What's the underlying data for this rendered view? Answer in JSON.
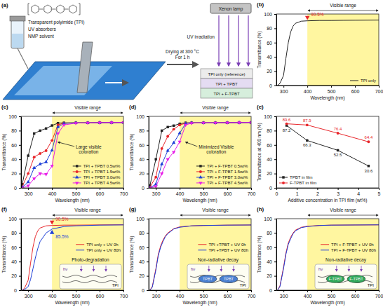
{
  "schematic": {
    "panel": "(a)",
    "polymer": "Transparent polyimide (TPI)",
    "absorber": "UV absorbers",
    "solvent": "NMP solvent",
    "drying": [
      "Drying at 300 °C",
      "For 1 h"
    ],
    "lamp": "Xenon lamp",
    "irradiation": "UV irradiation",
    "films": [
      "TPI only (reference)",
      "TPI + TPBT",
      "TPI + F-TPBT"
    ]
  },
  "chart_data": [
    {
      "type": "line",
      "panel": "(b)",
      "x_label": "Wavelength (nm)",
      "y_label": "Transmittance (%)",
      "xlim": [
        270,
        700
      ],
      "xticks": [
        300,
        400,
        500,
        600,
        700
      ],
      "ylim": [
        0,
        100
      ],
      "yticks": [
        0,
        20,
        40,
        60,
        80,
        100
      ],
      "visible_range": [
        400,
        700
      ],
      "visible_label": "Visible range",
      "x": [
        275,
        285,
        300,
        310,
        320,
        330,
        340,
        350,
        375,
        400,
        450,
        500,
        550,
        600,
        650,
        700
      ],
      "series": [
        {
          "name": "TPI only",
          "color": "#222222",
          "values": [
            0,
            3,
            14,
            38,
            60,
            75,
            83,
            87,
            90,
            90.5,
            91,
            91,
            91.2,
            91.3,
            91.4,
            91.5
          ]
        }
      ],
      "legend": "lower right",
      "annotations": [
        {
          "label": "90.5%",
          "x": 400,
          "y": 90.5,
          "color": "#e8262b",
          "marker": "triangle-down"
        }
      ]
    },
    {
      "type": "line",
      "panel": "(c)",
      "x_label": "Wavelength (nm)",
      "y_label": "Transmittance (%)",
      "xlim": [
        270,
        700
      ],
      "xticks": [
        300,
        400,
        500,
        600,
        700
      ],
      "ylim": [
        0,
        100
      ],
      "yticks": [
        0,
        20,
        40,
        60,
        80,
        100
      ],
      "visible_range": [
        400,
        700
      ],
      "visible_label": "Visible range",
      "x": [
        275,
        300,
        325,
        350,
        375,
        400,
        425,
        450,
        500,
        550,
        600,
        650,
        700
      ],
      "series": [
        {
          "name": "TPI + TPBT 0.5wt%",
          "color": "#222222",
          "marker": "square",
          "values": [
            5,
            45,
            76,
            80,
            83,
            87.2,
            90.5,
            91,
            91,
            91,
            91.2,
            91.3,
            91.4
          ]
        },
        {
          "name": "TPI + TPBT 1.5wt%",
          "color": "#e8262b",
          "marker": "circle",
          "values": [
            2,
            20,
            43,
            48,
            52,
            66.3,
            88,
            90.5,
            91,
            91,
            91.2,
            91.3,
            91.4
          ]
        },
        {
          "name": "TPI + TPBT 3.0wt%",
          "color": "#1d3fd8",
          "marker": "triangle",
          "values": [
            1,
            8,
            28,
            33,
            36,
            52.5,
            85,
            90,
            91,
            91,
            91.2,
            91.3,
            91.4
          ]
        },
        {
          "name": "TPI + TPBT 4.5wt%",
          "color": "#e81ee8",
          "marker": "triangle-down",
          "values": [
            0,
            3,
            13,
            20,
            19,
            30.6,
            76,
            88,
            90.5,
            91,
            91.2,
            91.3,
            91.4
          ]
        }
      ],
      "legend": "lower right",
      "annotations": [
        {
          "text": "Large visible coloration"
        }
      ]
    },
    {
      "type": "line",
      "panel": "(d)",
      "x_label": "Wavelength (nm)",
      "y_label": "Transmittance (%)",
      "xlim": [
        270,
        700
      ],
      "xticks": [
        300,
        400,
        500,
        600,
        700
      ],
      "ylim": [
        0,
        100
      ],
      "yticks": [
        0,
        20,
        40,
        60,
        80,
        100
      ],
      "visible_range": [
        400,
        700
      ],
      "visible_label": "Visible range",
      "x": [
        275,
        300,
        325,
        350,
        375,
        400,
        425,
        450,
        500,
        550,
        600,
        650,
        700
      ],
      "series": [
        {
          "name": "TPI + F-TPBT 0.5wt%",
          "color": "#222222",
          "marker": "square",
          "values": [
            3,
            40,
            80,
            85,
            87,
            89.6,
            91,
            91,
            91,
            91,
            91.2,
            91.3,
            91.4
          ]
        },
        {
          "name": "TPI + F-TPBT 1.5wt%",
          "color": "#e8262b",
          "marker": "circle",
          "values": [
            1,
            15,
            55,
            72,
            82,
            87.9,
            90.5,
            91,
            91,
            91,
            91.2,
            91.3,
            91.4
          ]
        },
        {
          "name": "TPI + F-TPBT 3.0wt%",
          "color": "#1d3fd8",
          "marker": "triangle",
          "values": [
            0,
            5,
            33,
            52,
            63,
            76.4,
            90,
            91,
            91,
            91,
            91.2,
            91.3,
            91.4
          ]
        },
        {
          "name": "TPI + F-TPBT 4.5wt%",
          "color": "#e81ee8",
          "marker": "triangle-down",
          "values": [
            0,
            2,
            20,
            40,
            50,
            64.4,
            88,
            90.5,
            91,
            91,
            91.2,
            91.3,
            91.4
          ]
        }
      ],
      "legend": "lower right",
      "annotations": [
        {
          "text": "Minimized Visible coloration"
        }
      ]
    },
    {
      "type": "line",
      "panel": "(e)",
      "x_label": "Additive concentration in TPI film (wt%)",
      "y_label": "Transmittance at 400 nm (%)",
      "xlim": [
        0,
        5
      ],
      "xticks": [
        0,
        1,
        2,
        3,
        4,
        5
      ],
      "ylim": [
        0,
        100
      ],
      "yticks": [
        0,
        20,
        40,
        60,
        80,
        100
      ],
      "x": [
        0.5,
        1.5,
        3.0,
        4.5
      ],
      "series": [
        {
          "name": "TPBT in film",
          "color": "#222222",
          "marker": "square",
          "values": [
            87.2,
            66.3,
            52.5,
            30.6
          ]
        },
        {
          "name": "F-TPBT in film",
          "color": "#e8262b",
          "marker": "circle",
          "values": [
            89.6,
            87.9,
            76.4,
            64.4
          ]
        }
      ],
      "data_labels": true,
      "legend": "lower left"
    },
    {
      "type": "line",
      "panel": "(f)",
      "x_label": "Wavelength (nm)",
      "y_label": "Transmittance (%)",
      "xlim": [
        270,
        700
      ],
      "xticks": [
        300,
        400,
        500,
        600,
        700
      ],
      "ylim": [
        0,
        100
      ],
      "yticks": [
        0,
        20,
        40,
        60,
        80,
        100
      ],
      "visible_range": [
        400,
        700
      ],
      "visible_label": "Visible range",
      "x": [
        275,
        285,
        300,
        310,
        320,
        330,
        340,
        350,
        375,
        400,
        450,
        500,
        600,
        700
      ],
      "series": [
        {
          "name": "TPI only + UV 0h",
          "color": "#e8262b",
          "values": [
            0,
            3,
            14,
            38,
            60,
            75,
            83,
            87,
            90,
            90.5,
            91,
            91,
            91.3,
            91.5
          ]
        },
        {
          "name": "TPI only + UV 80h",
          "color": "#1d3fd8",
          "values": [
            0,
            1,
            5,
            15,
            30,
            45,
            58,
            68,
            80,
            85.5,
            89,
            90,
            91,
            91.3
          ]
        }
      ],
      "legend": "center right",
      "annotations": [
        {
          "label": "90.5%",
          "x": 400,
          "y": 90.5,
          "color": "#e8262b",
          "marker": "triangle-down"
        },
        {
          "label": "85.5%",
          "x": 400,
          "y": 85.5,
          "color": "#1d3fd8",
          "marker": "triangle"
        },
        {
          "text": "Photo-degradation"
        }
      ],
      "inset": {
        "light": "hν",
        "matrix": "TPI"
      }
    },
    {
      "type": "line",
      "panel": "(g)",
      "x_label": "Wavelength (nm)",
      "y_label": "Transmittance (%)",
      "xlim": [
        270,
        700
      ],
      "xticks": [
        300,
        400,
        500,
        600,
        700
      ],
      "ylim": [
        0,
        100
      ],
      "yticks": [
        0,
        20,
        40,
        60,
        80,
        100
      ],
      "visible_range": [
        400,
        700
      ],
      "visible_label": "Visible range",
      "x": [
        275,
        285,
        300,
        310,
        320,
        330,
        340,
        350,
        375,
        400,
        450,
        500,
        600,
        700
      ],
      "series": [
        {
          "name": "TPI +TPBT + UV 0h",
          "color": "#e8262b",
          "values": [
            0,
            5,
            30,
            50,
            62,
            70,
            76,
            80,
            86,
            88.5,
            90,
            90.5,
            91,
            91.2
          ]
        },
        {
          "name": "TPI +TPBT + UV 80h",
          "color": "#1d3fd8",
          "values": [
            0,
            4,
            28,
            48,
            60,
            68,
            75,
            79,
            85.5,
            88,
            90,
            90.5,
            91,
            91.2
          ]
        }
      ],
      "legend": "center right",
      "annotations": [
        {
          "text": "Non-radiative decay"
        }
      ],
      "inset": {
        "light": "hν",
        "matrix": "TPI",
        "absorbers": [
          "TPBT",
          "TPBT"
        ],
        "color": "#4a7fd0"
      }
    },
    {
      "type": "line",
      "panel": "(h)",
      "x_label": "Wavelength (nm)",
      "y_label": "Transmittance (%)",
      "xlim": [
        270,
        700
      ],
      "xticks": [
        300,
        400,
        500,
        600,
        700
      ],
      "ylim": [
        0,
        100
      ],
      "yticks": [
        0,
        20,
        40,
        60,
        80,
        100
      ],
      "visible_range": [
        400,
        700
      ],
      "visible_label": "Visible range",
      "x": [
        275,
        285,
        300,
        310,
        320,
        330,
        340,
        350,
        375,
        400,
        450,
        500,
        600,
        700
      ],
      "series": [
        {
          "name": "TPI + F-TPBT + UV 0h",
          "color": "#e8262b",
          "values": [
            0,
            6,
            32,
            52,
            66,
            74,
            80,
            84,
            88,
            89.5,
            90.5,
            91,
            91.2,
            91.4
          ]
        },
        {
          "name": "TPI + F-TPBT + UV 80h",
          "color": "#1d3fd8",
          "values": [
            0,
            5,
            30,
            50,
            64,
            72,
            79,
            83,
            87.5,
            89,
            90.5,
            91,
            91.2,
            91.4
          ]
        }
      ],
      "legend": "center right",
      "annotations": [
        {
          "text": "Non-radiative decay"
        }
      ],
      "inset": {
        "light": "hν",
        "matrix": "TPI",
        "absorbers": [
          "F-TPBT",
          "F-TPBT"
        ],
        "color": "#2fa85a"
      }
    }
  ]
}
